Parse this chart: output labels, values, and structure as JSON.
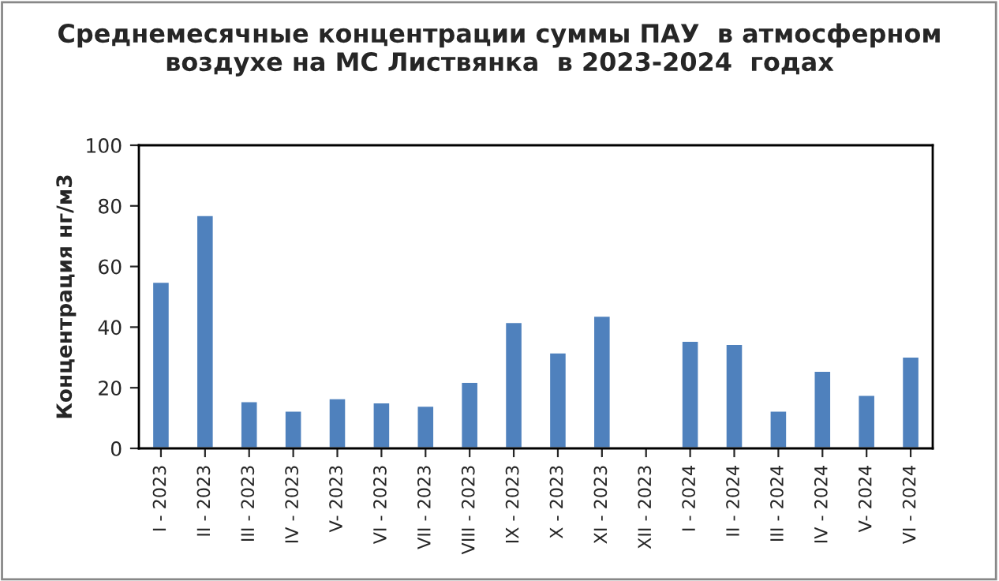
{
  "chart_data": {
    "type": "bar",
    "title": "Среднемесячные концентрации суммы ПАУ  в атмосферном\nвоздухе на МС Листвянка  в 2023-2024  годах",
    "ylabel": "Концентрация нг/м3",
    "categories": [
      "I - 2023",
      "II - 2023",
      "III - 2023",
      "IV - 2023",
      "V- 2023",
      "VI - 2023",
      "VII - 2023",
      "VIII - 2023",
      "IX - 2023",
      "X - 2023",
      "XI - 2023",
      "XII - 2023",
      "I - 2024",
      "II - 2024",
      "III - 2024",
      "IV - 2024",
      "V- 2024",
      "VI - 2024"
    ],
    "values": [
      55,
      77,
      15.6,
      12.5,
      16.6,
      15.2,
      14.1,
      22,
      41.7,
      31.7,
      43.8,
      null,
      35.5,
      34.5,
      12.5,
      25.6,
      17.7,
      30.3
    ],
    "color": "#4f81bd",
    "ylim": [
      0,
      100
    ],
    "yticks": [
      0,
      20,
      40,
      60,
      80,
      100
    ],
    "grid": false,
    "legend": false
  }
}
